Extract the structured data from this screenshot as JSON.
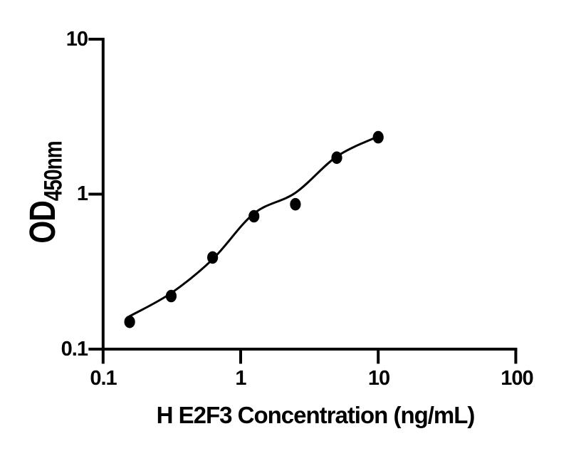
{
  "colors": {
    "background": "#ffffff",
    "ink": "#000000"
  },
  "chart_data": {
    "type": "scatter",
    "title": "",
    "xlabel": "H E2F3 Concentration (ng/mL)",
    "ylabel_main": "OD",
    "ylabel_sub": "450nm",
    "x_scale": "log10",
    "y_scale": "log10",
    "xlim": [
      0.1,
      100
    ],
    "ylim": [
      0.1,
      10
    ],
    "grid": false,
    "legend_position": "none",
    "x_ticks": [
      {
        "value": 0.1,
        "label": "0.1"
      },
      {
        "value": 1,
        "label": "1"
      },
      {
        "value": 10,
        "label": "10"
      },
      {
        "value": 100,
        "label": "100"
      }
    ],
    "y_ticks": [
      {
        "value": 10,
        "label": "10"
      },
      {
        "value": 1,
        "label": "1"
      },
      {
        "value": 0.1,
        "label": "0.1"
      }
    ],
    "series": [
      {
        "name": "standard-curve",
        "marker": "filled-circle",
        "marker_color": "#000000",
        "line_color": "#000000",
        "points": [
          {
            "x": 0.156,
            "y": 0.15
          },
          {
            "x": 0.3125,
            "y": 0.22
          },
          {
            "x": 0.625,
            "y": 0.39
          },
          {
            "x": 1.25,
            "y": 0.72
          },
          {
            "x": 2.5,
            "y": 0.86
          },
          {
            "x": 5,
            "y": 1.72
          },
          {
            "x": 10,
            "y": 2.33
          }
        ],
        "fit_curve": [
          {
            "x": 0.156,
            "y": 0.163
          },
          {
            "x": 0.3125,
            "y": 0.23
          },
          {
            "x": 0.625,
            "y": 0.38
          },
          {
            "x": 1.25,
            "y": 0.75
          },
          {
            "x": 2.5,
            "y": 1.02
          },
          {
            "x": 5,
            "y": 1.75
          },
          {
            "x": 10,
            "y": 2.36
          }
        ]
      }
    ]
  }
}
